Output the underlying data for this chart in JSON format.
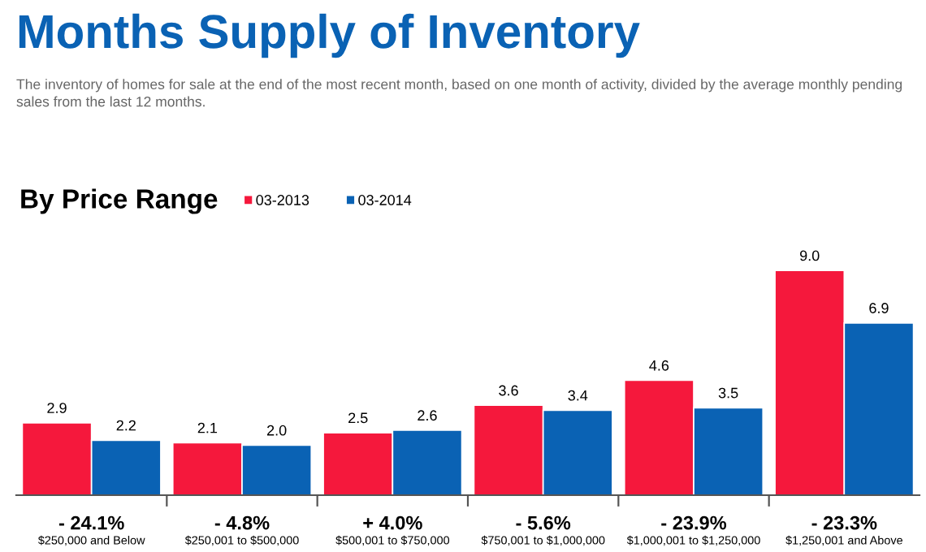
{
  "chart_data": {
    "type": "bar",
    "title": "Months Supply of Inventory",
    "subtitle": "The inventory of homes for sale at the end of the most recent month, based on one month of activity, divided by the average monthly pending sales from the last 12 months.",
    "categories": [
      "$250,000 and Below",
      "$250,001 to $500,000",
      "$500,001 to $750,000",
      "$750,001 to $1,000,000",
      "$1,000,001 to $1,250,000",
      "$1,250,001 and Above"
    ],
    "series": [
      {
        "name": "03-2013",
        "color": "#f5183c",
        "values": [
          2.9,
          2.1,
          2.5,
          3.6,
          4.6,
          9.0
        ],
        "value_labels": [
          "2.9",
          "2.1",
          "2.5",
          "3.6",
          "4.6",
          "9.0"
        ]
      },
      {
        "name": "03-2014",
        "color": "#0a62b4",
        "values": [
          2.2,
          2.0,
          2.6,
          3.4,
          3.5,
          6.9
        ],
        "value_labels": [
          "2.2",
          "2.0",
          "2.6",
          "3.4",
          "3.5",
          "6.9"
        ]
      }
    ],
    "annotations": [
      "By Price Range",
      "- 24.1%",
      "- 4.8%",
      "+ 4.0%",
      "- 5.6%",
      "- 23.9%",
      "- 23.3%"
    ],
    "legend": "top left",
    "grid": false,
    "tick_labels": "x"
  }
}
